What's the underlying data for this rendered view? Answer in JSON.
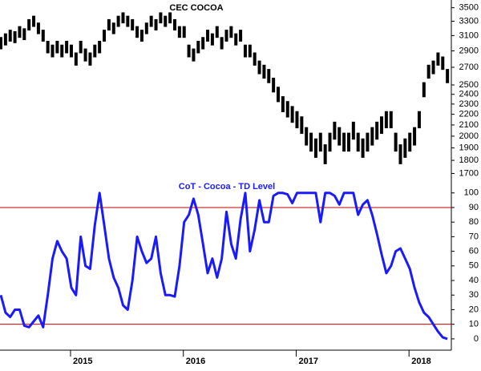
{
  "chart_data": [
    {
      "type": "hilo",
      "title": "CEC COCOA",
      "color": "#000000",
      "log": true,
      "ylim": [
        1650,
        3620
      ],
      "yticks": [
        1700,
        1800,
        1900,
        2000,
        2100,
        2200,
        2300,
        2400,
        2500,
        2700,
        2900,
        3100,
        3300,
        3500
      ],
      "high": [
        3080,
        3130,
        3180,
        3160,
        3230,
        3200,
        3330,
        3380,
        3280,
        3180,
        3030,
        2980,
        3030,
        2980,
        3030,
        2980,
        2880,
        3030,
        2930,
        2880,
        2980,
        3030,
        3180,
        3330,
        3280,
        3380,
        3430,
        3380,
        3330,
        3230,
        3180,
        3280,
        3380,
        3330,
        3430,
        3380,
        3430,
        3330,
        3230,
        3230,
        2980,
        2930,
        3030,
        3080,
        3180,
        3130,
        3230,
        3080,
        3180,
        3230,
        3130,
        3180,
        2980,
        2980,
        2880,
        2780,
        2730,
        2680,
        2580,
        2480,
        2380,
        2330,
        2280,
        2230,
        2180,
        2080,
        2030,
        1980,
        2030,
        1930,
        2030,
        2130,
        2080,
        2030,
        2030,
        2130,
        2030,
        1980,
        2030,
        2080,
        2130,
        2180,
        2230,
        2230,
        2030,
        1930,
        1980,
        2030,
        2080,
        2230,
        2530,
        2730,
        2780,
        2880,
        2830,
        2680
      ],
      "low": [
        2920,
        2970,
        3020,
        3000,
        3070,
        3040,
        3170,
        3220,
        3120,
        3020,
        2870,
        2820,
        2870,
        2820,
        2870,
        2820,
        2720,
        2870,
        2770,
        2720,
        2820,
        2870,
        3020,
        3170,
        3120,
        3220,
        3270,
        3220,
        3170,
        3070,
        3020,
        3120,
        3220,
        3170,
        3270,
        3220,
        3270,
        3170,
        3070,
        3070,
        2820,
        2770,
        2870,
        2920,
        3020,
        2970,
        3070,
        2920,
        3020,
        3070,
        2970,
        3020,
        2820,
        2820,
        2720,
        2620,
        2570,
        2520,
        2420,
        2320,
        2220,
        2170,
        2120,
        2070,
        2020,
        1920,
        1870,
        1820,
        1870,
        1770,
        1870,
        1970,
        1920,
        1870,
        1870,
        1970,
        1870,
        1820,
        1870,
        1920,
        1970,
        2020,
        2070,
        2070,
        1870,
        1770,
        1820,
        1870,
        1920,
        2070,
        2370,
        2570,
        2620,
        2720,
        2670,
        2520
      ]
    },
    {
      "type": "line",
      "title": "CoT - Cocoa - TD Level",
      "color": "#1a1aff",
      "title_color": "#1a1aff",
      "reference_lines": [
        90,
        10
      ],
      "reference_color": "#c00000",
      "ylim": [
        -5,
        107
      ],
      "yticks": [
        0,
        10,
        20,
        30,
        40,
        50,
        60,
        70,
        80,
        90,
        100
      ],
      "categories": [
        null,
        null,
        null,
        null,
        null,
        null,
        null,
        null,
        null,
        null,
        null,
        null,
        null,
        null,
        null,
        "2015",
        null,
        null,
        null,
        null,
        null,
        null,
        null,
        null,
        null,
        null,
        null,
        null,
        null,
        null,
        null,
        null,
        null,
        null,
        null,
        null,
        null,
        null,
        null,
        "2016",
        null,
        null,
        null,
        null,
        null,
        null,
        null,
        null,
        null,
        null,
        null,
        null,
        null,
        null,
        null,
        null,
        null,
        null,
        null,
        null,
        null,
        null,
        null,
        "2017",
        null,
        null,
        null,
        null,
        null,
        null,
        null,
        null,
        null,
        null,
        null,
        null,
        null,
        null,
        null,
        null,
        null,
        null,
        null,
        null,
        null,
        null,
        null,
        "2018",
        null,
        null,
        null,
        null,
        null,
        null,
        null,
        null
      ],
      "values": [
        30,
        18,
        15,
        20,
        20,
        9,
        8,
        12,
        16,
        8,
        30,
        55,
        67,
        60,
        55,
        35,
        30,
        70,
        50,
        48,
        78,
        100,
        78,
        55,
        42,
        35,
        23,
        20,
        40,
        70,
        60,
        52,
        55,
        70,
        45,
        30,
        30,
        29,
        50,
        80,
        85,
        96,
        85,
        65,
        45,
        55,
        42,
        55,
        87,
        65,
        55,
        82,
        100,
        60,
        75,
        95,
        80,
        80,
        98,
        100,
        100,
        99,
        93,
        100,
        100,
        100,
        100,
        100,
        80,
        100,
        100,
        98,
        92,
        100,
        100,
        100,
        85,
        92,
        95,
        85,
        72,
        58,
        45,
        50,
        60,
        62,
        55,
        48,
        35,
        25,
        18,
        15,
        10,
        5,
        1,
        0
      ]
    }
  ]
}
